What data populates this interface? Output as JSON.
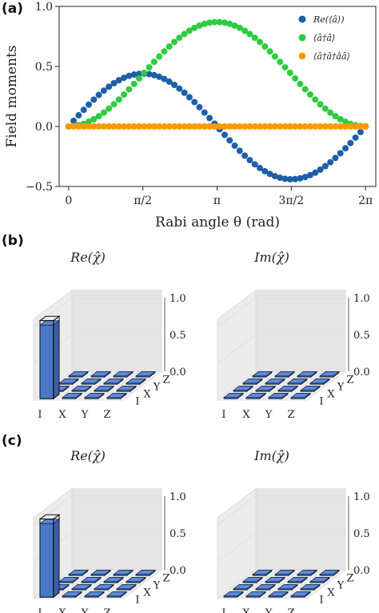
{
  "panels": {
    "a": "(a)",
    "b": "(b)",
    "c": "(c)"
  },
  "chart_data": [
    {
      "type": "scatter",
      "xlabel": "Rabi angle θ (rad)",
      "ylabel": "Field moments",
      "xlim": [
        -0.2,
        6.5
      ],
      "ylim": [
        -0.5,
        1.0
      ],
      "xticks": [
        0,
        1.5708,
        3.1416,
        4.7124,
        6.2832
      ],
      "xticklabels": [
        "0",
        "π/2",
        "π",
        "3π/2",
        "2π"
      ],
      "yticks": [
        -0.5,
        0.0,
        0.5,
        1.0
      ],
      "yticklabels": [
        "−0.5",
        "0.0",
        "0.5",
        "1.0"
      ],
      "legend": "top-right",
      "series": [
        {
          "name": "Re(⟨â⟩)",
          "color": "#1f5fa8",
          "function": "0.43*sin(theta)*(1+cos(theta))*sqrt(... )",
          "amplitude": 0.44
        },
        {
          "name": "⟨â†â⟩",
          "color": "#2ecc40",
          "peak": 0.87
        },
        {
          "name": "⟨â†â†ââ⟩",
          "color": "#ff9900",
          "value": 0.0
        }
      ],
      "n_points": 60
    },
    {
      "type": "bar3d",
      "title": "Re(χ̂)",
      "axis_labels": [
        "I",
        "X",
        "Y",
        "Z"
      ],
      "zticks": [
        "0.0",
        "0.5",
        "1.0"
      ],
      "values": [
        [
          1.0,
          0,
          0,
          0
        ],
        [
          0,
          0,
          0,
          0
        ],
        [
          0,
          0,
          0,
          0
        ],
        [
          0,
          0,
          0,
          0
        ]
      ],
      "ideal": [
        [
          1.0,
          0,
          0,
          0
        ],
        [
          0,
          0,
          0,
          0
        ],
        [
          0,
          0,
          0,
          0
        ],
        [
          0,
          0,
          0,
          0
        ]
      ]
    },
    {
      "type": "bar3d",
      "title": "Im(χ̂)",
      "axis_labels": [
        "I",
        "X",
        "Y",
        "Z"
      ],
      "zticks": [
        "0.0",
        "0.5",
        "1.0"
      ],
      "values": [
        [
          0,
          0,
          0,
          0
        ],
        [
          0,
          0,
          0,
          0
        ],
        [
          0,
          0,
          0,
          0
        ],
        [
          0,
          0,
          0,
          0
        ]
      ]
    },
    {
      "type": "bar3d",
      "title": "Re(χ̂)",
      "axis_labels": [
        "I",
        "X",
        "Y",
        "Z"
      ],
      "zticks": [
        "0.0",
        "0.5",
        "1.0"
      ],
      "values": [
        [
          1.0,
          0,
          0,
          0
        ],
        [
          0,
          0,
          0,
          0
        ],
        [
          0,
          0,
          0,
          0
        ],
        [
          0,
          0,
          0,
          0
        ]
      ],
      "ideal": [
        [
          1.0,
          0,
          0,
          0
        ],
        [
          0,
          0,
          0,
          0
        ],
        [
          0,
          0,
          0,
          0
        ],
        [
          0,
          0,
          0,
          0
        ]
      ]
    },
    {
      "type": "bar3d",
      "title": "Im(χ̂)",
      "axis_labels": [
        "I",
        "X",
        "Y",
        "Z"
      ],
      "zticks": [
        "0.0",
        "0.5",
        "1.0"
      ],
      "values": [
        [
          0,
          0,
          0,
          0
        ],
        [
          0,
          0,
          0,
          0
        ],
        [
          0,
          0,
          0,
          0
        ],
        [
          0,
          0,
          0,
          0
        ]
      ]
    }
  ]
}
